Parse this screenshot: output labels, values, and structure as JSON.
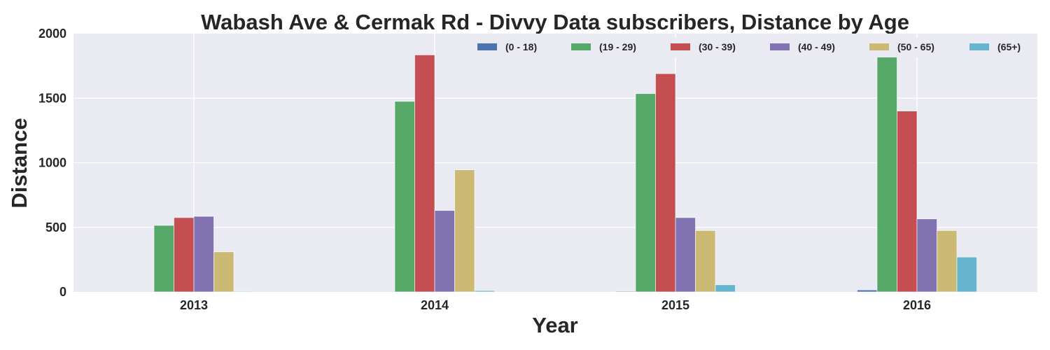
{
  "chart_data": {
    "type": "bar",
    "title": "Wabash Ave & Cermak Rd - Divvy Data subscribers, Distance by Age",
    "xlabel": "Year",
    "ylabel": "Distance",
    "categories": [
      "2013",
      "2014",
      "2015",
      "2016"
    ],
    "ylim": [
      0,
      2000
    ],
    "yticks": [
      0,
      500,
      1000,
      1500,
      2000
    ],
    "grid": true,
    "legend_position": "top-right",
    "series": [
      {
        "name": "(0 - 18)",
        "color": "#4C72B0",
        "values": [
          0,
          0,
          5,
          15
        ]
      },
      {
        "name": "(19 - 29)",
        "color": "#55A868",
        "values": [
          515,
          1475,
          1535,
          1830
        ]
      },
      {
        "name": "(30 - 39)",
        "color": "#C44E52",
        "values": [
          575,
          1835,
          1690,
          1400
        ]
      },
      {
        "name": "(40 - 49)",
        "color": "#8172B2",
        "values": [
          585,
          630,
          575,
          565
        ]
      },
      {
        "name": "(50 - 65)",
        "color": "#CCB974",
        "values": [
          310,
          945,
          475,
          475
        ]
      },
      {
        "name": "(65+)",
        "color": "#64B5CD",
        "values": [
          5,
          10,
          55,
          270
        ]
      }
    ]
  }
}
